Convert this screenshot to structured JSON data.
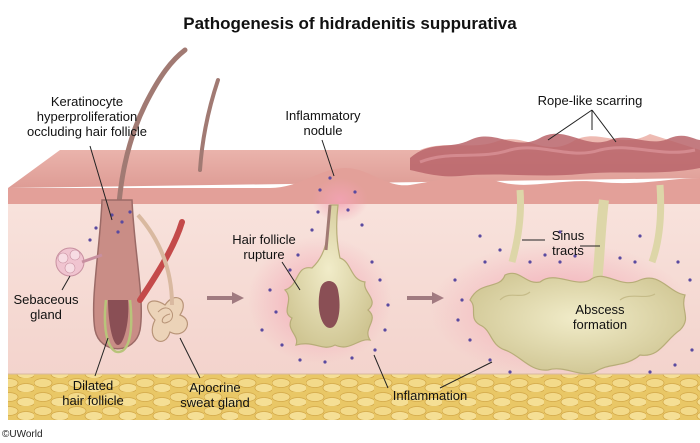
{
  "title": "Pathogenesis of hidradenitis suppurativa",
  "labels": {
    "keratinocyte": [
      "Keratinocyte",
      "hyperproliferation",
      "occluding hair follicle"
    ],
    "sebaceous": [
      "Sebaceous",
      "gland"
    ],
    "dilated": [
      "Dilated",
      "hair follicle"
    ],
    "apocrine": [
      "Apocrine",
      "sweat gland"
    ],
    "inflammatory_nodule": [
      "Inflammatory",
      "nodule"
    ],
    "follicle_rupture": [
      "Hair follicle",
      "rupture"
    ],
    "inflammation": "Inflammation",
    "rope_scarring": "Rope-like scarring",
    "sinus_tracts": [
      "Sinus",
      "tracts"
    ],
    "abscess": [
      "Abscess",
      "formation"
    ]
  },
  "copyright": "©UWorld",
  "colors": {
    "epidermis": "#e7a9a3",
    "dermis": "#f6dcd6",
    "fat": "#efd27a",
    "pus": "#e4dfb6",
    "inflammation": "#e88aa0",
    "cells": "#5a4aa0",
    "arrow": "#a07a80"
  }
}
